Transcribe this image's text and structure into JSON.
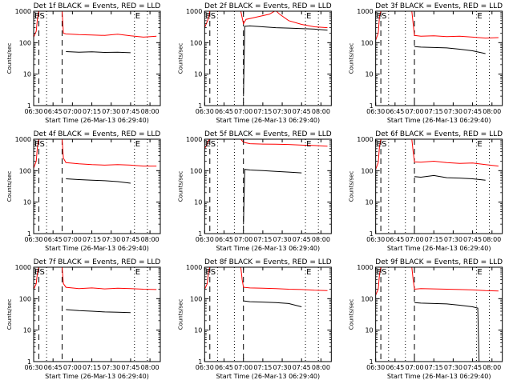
{
  "x_tick_labels": [
    "06:30",
    "06:45",
    "07:00",
    "07:15",
    "07:30",
    "07:45",
    "08:00"
  ],
  "y_tick_labels": [
    "1",
    "10",
    "100",
    "1000"
  ],
  "ylabel": "Counts/sec",
  "xlabel": "Start Time (26-Mar-13 06:29:40)",
  "colors": {
    "events": "#000000",
    "lld": "#ff0000",
    "axes": "#000000",
    "background": "#ffffff"
  },
  "chart_data": [
    {
      "type": "line",
      "title": "Det 1f BLACK = Events, RED = LLD",
      "xlabel": "Start Time (26-Mar-13 06:29:40)",
      "ylabel": "Counts/sec",
      "y_scale": "log",
      "xlim": [
        "06:30",
        "08:08"
      ],
      "ylim": [
        1,
        1000
      ],
      "x_ticks": [
        "06:30",
        "06:45",
        "07:00",
        "07:15",
        "07:30",
        "07:45",
        "08:00"
      ],
      "y_ticks": [
        1,
        10,
        100,
        1000
      ],
      "markers": [
        {
          "label": "E",
          "x": "06:30"
        },
        {
          "label": "S",
          "x": "06:34"
        },
        {
          "label": "E",
          "x": "07:48"
        }
      ],
      "dashed_lines": [
        "06:34",
        "06:52"
      ],
      "dotted_lines": [
        "06:40",
        "07:48",
        "07:58"
      ],
      "series": [
        {
          "color": "#ff0000",
          "x": [
            "06:30",
            "06:32",
            "06:33",
            "06:34",
            "06:35",
            "06:52",
            "06:53",
            "06:55",
            "07:05",
            "07:15",
            "07:25",
            "07:35",
            "07:45",
            "07:55",
            "08:05"
          ],
          "y": [
            150,
            230,
            600,
            1000,
            1000,
            1000,
            200,
            190,
            180,
            175,
            170,
            185,
            165,
            150,
            160
          ]
        },
        {
          "color": "#000000",
          "x": [
            "06:55",
            "07:05",
            "07:15",
            "07:25",
            "07:35",
            "07:45"
          ],
          "y": [
            52,
            50,
            51,
            49,
            50,
            48
          ]
        }
      ]
    },
    {
      "type": "line",
      "title": "Det 2f BLACK = Events, RED = LLD",
      "xlabel": "Start Time (26-Mar-13 06:29:40)",
      "ylabel": "Counts/sec",
      "y_scale": "log",
      "xlim": [
        "06:30",
        "08:08"
      ],
      "ylim": [
        1,
        1000
      ],
      "x_ticks": [
        "06:30",
        "06:45",
        "07:00",
        "07:15",
        "07:30",
        "07:45",
        "08:00"
      ],
      "y_ticks": [
        1,
        10,
        100,
        1000
      ],
      "markers": [
        {
          "label": "E",
          "x": "06:30"
        },
        {
          "label": "S",
          "x": "06:34"
        },
        {
          "label": "E",
          "x": "07:48"
        }
      ],
      "dashed_lines": [
        "06:34",
        "07:00"
      ],
      "dotted_lines": [
        "06:40",
        "06:53",
        "07:48",
        "07:58"
      ],
      "series": [
        {
          "color": "#ff0000",
          "x": [
            "06:30",
            "06:33",
            "06:34",
            "06:35",
            "06:58",
            "07:00",
            "07:02",
            "07:10",
            "07:20",
            "07:25",
            "07:28",
            "07:35",
            "07:45",
            "07:55",
            "08:05"
          ],
          "y": [
            300,
            600,
            1000,
            1000,
            1000,
            400,
            550,
            650,
            800,
            1050,
            800,
            500,
            380,
            320,
            300
          ]
        },
        {
          "color": "#000000",
          "x": [
            "07:00",
            "07:01",
            "07:05",
            "07:15",
            "07:25",
            "07:35",
            "07:45",
            "07:55",
            "08:05"
          ],
          "y": [
            2,
            330,
            340,
            320,
            300,
            290,
            280,
            270,
            250
          ]
        }
      ]
    },
    {
      "type": "line",
      "title": "Det 3f BLACK = Events, RED = LLD",
      "xlabel": "Start Time (26-Mar-13 06:29:40)",
      "ylabel": "Counts/sec",
      "y_scale": "log",
      "xlim": [
        "06:30",
        "08:08"
      ],
      "ylim": [
        1,
        1000
      ],
      "x_ticks": [
        "06:30",
        "06:45",
        "07:00",
        "07:15",
        "07:30",
        "07:45",
        "08:00"
      ],
      "y_ticks": [
        1,
        10,
        100,
        1000
      ],
      "markers": [
        {
          "label": "E",
          "x": "06:30"
        },
        {
          "label": "S",
          "x": "06:34"
        },
        {
          "label": "E",
          "x": "07:48"
        }
      ],
      "dashed_lines": [
        "06:34",
        "07:00"
      ],
      "dotted_lines": [
        "06:40",
        "06:53",
        "07:48",
        "07:58"
      ],
      "series": [
        {
          "color": "#ff0000",
          "x": [
            "06:30",
            "06:32",
            "06:33",
            "06:34",
            "06:35",
            "06:58",
            "06:59",
            "07:00",
            "07:05",
            "07:15",
            "07:25",
            "07:35",
            "07:45",
            "07:55",
            "08:05"
          ],
          "y": [
            120,
            200,
            700,
            1000,
            1000,
            1000,
            400,
            170,
            160,
            165,
            155,
            160,
            150,
            140,
            145
          ]
        },
        {
          "color": "#000000",
          "x": [
            "07:00",
            "07:05",
            "07:15",
            "07:25",
            "07:35",
            "07:45",
            "07:55"
          ],
          "y": [
            75,
            72,
            70,
            68,
            62,
            55,
            45
          ]
        }
      ]
    },
    {
      "type": "line",
      "title": "Det 4f BLACK = Events, RED = LLD",
      "xlabel": "Start Time (26-Mar-13 06:29:40)",
      "ylabel": "Counts/sec",
      "y_scale": "log",
      "xlim": [
        "06:30",
        "08:08"
      ],
      "ylim": [
        1,
        1000
      ],
      "x_ticks": [
        "06:30",
        "06:45",
        "07:00",
        "07:15",
        "07:30",
        "07:45",
        "08:00"
      ],
      "y_ticks": [
        1,
        10,
        100,
        1000
      ],
      "markers": [
        {
          "label": "E",
          "x": "06:30"
        },
        {
          "label": "S",
          "x": "06:34"
        },
        {
          "label": "E",
          "x": "07:48"
        }
      ],
      "dashed_lines": [
        "06:34",
        "06:52"
      ],
      "dotted_lines": [
        "06:40",
        "07:48",
        "07:58"
      ],
      "series": [
        {
          "color": "#ff0000",
          "x": [
            "06:30",
            "06:32",
            "06:33",
            "06:34",
            "06:35",
            "06:52",
            "06:53",
            "06:55",
            "07:05",
            "07:15",
            "07:25",
            "07:35",
            "07:45",
            "07:55",
            "08:05"
          ],
          "y": [
            120,
            200,
            600,
            1000,
            1000,
            1000,
            250,
            180,
            165,
            155,
            150,
            155,
            150,
            140,
            140
          ]
        },
        {
          "color": "#000000",
          "x": [
            "06:55",
            "07:05",
            "07:15",
            "07:25",
            "07:35",
            "07:45"
          ],
          "y": [
            55,
            52,
            50,
            48,
            45,
            40
          ]
        }
      ]
    },
    {
      "type": "line",
      "title": "Det 5f BLACK = Events, RED = LLD",
      "xlabel": "Start Time (26-Mar-13 06:29:40)",
      "ylabel": "Counts/sec",
      "y_scale": "log",
      "xlim": [
        "06:30",
        "08:08"
      ],
      "ylim": [
        1,
        1000
      ],
      "x_ticks": [
        "06:30",
        "06:45",
        "07:00",
        "07:15",
        "07:30",
        "07:45",
        "08:00"
      ],
      "y_ticks": [
        1,
        10,
        100,
        1000
      ],
      "markers": [
        {
          "label": "E",
          "x": "06:30"
        },
        {
          "label": "S",
          "x": "06:34"
        },
        {
          "label": "E",
          "x": "07:48"
        }
      ],
      "dashed_lines": [
        "06:34",
        "07:00"
      ],
      "dotted_lines": [
        "06:40",
        "06:53",
        "07:48",
        "07:58"
      ],
      "series": [
        {
          "color": "#ff0000",
          "x": [
            "06:30",
            "06:32",
            "06:33",
            "06:34",
            "06:35",
            "06:58",
            "07:00",
            "07:05",
            "07:15",
            "07:25",
            "07:35",
            "07:45",
            "07:55",
            "08:05"
          ],
          "y": [
            500,
            700,
            900,
            1000,
            1000,
            1000,
            800,
            720,
            700,
            690,
            680,
            650,
            630,
            600
          ]
        },
        {
          "color": "#000000",
          "x": [
            "07:00",
            "07:01",
            "07:05",
            "07:15",
            "07:25",
            "07:35",
            "07:45"
          ],
          "y": [
            2,
            110,
            105,
            100,
            95,
            90,
            85
          ]
        }
      ]
    },
    {
      "type": "line",
      "title": "Det 6f BLACK = Events, RED = LLD",
      "xlabel": "Start Time (26-Mar-13 06:29:40)",
      "ylabel": "Counts/sec",
      "y_scale": "log",
      "xlim": [
        "06:30",
        "08:08"
      ],
      "ylim": [
        1,
        1000
      ],
      "x_ticks": [
        "06:30",
        "06:45",
        "07:00",
        "07:15",
        "07:30",
        "07:45",
        "08:00"
      ],
      "y_ticks": [
        1,
        10,
        100,
        1000
      ],
      "markers": [
        {
          "label": "E",
          "x": "06:30"
        },
        {
          "label": "S",
          "x": "06:34"
        },
        {
          "label": "E",
          "x": "07:48"
        }
      ],
      "dashed_lines": [
        "06:34",
        "07:00"
      ],
      "dotted_lines": [
        "06:40",
        "06:53",
        "07:48",
        "07:58"
      ],
      "series": [
        {
          "color": "#ff0000",
          "x": [
            "06:30",
            "06:32",
            "06:33",
            "06:34",
            "06:35",
            "06:58",
            "06:59",
            "07:00",
            "07:05",
            "07:15",
            "07:25",
            "07:35",
            "07:45",
            "07:55",
            "08:05"
          ],
          "y": [
            110,
            180,
            600,
            1000,
            1000,
            1000,
            400,
            190,
            185,
            200,
            180,
            170,
            175,
            155,
            140
          ]
        },
        {
          "color": "#000000",
          "x": [
            "07:00",
            "07:05",
            "07:15",
            "07:25",
            "07:35",
            "07:45",
            "07:55"
          ],
          "y": [
            65,
            62,
            70,
            60,
            58,
            55,
            50
          ]
        }
      ]
    },
    {
      "type": "line",
      "title": "Det 7f BLACK = Events, RED = LLD",
      "xlabel": "Start Time (26-Mar-13 06:29:40)",
      "ylabel": "Counts/sec",
      "y_scale": "log",
      "xlim": [
        "06:30",
        "08:08"
      ],
      "ylim": [
        1,
        1000
      ],
      "x_ticks": [
        "06:30",
        "06:45",
        "07:00",
        "07:15",
        "07:30",
        "07:45",
        "08:00"
      ],
      "y_ticks": [
        1,
        10,
        100,
        1000
      ],
      "markers": [
        {
          "label": "E",
          "x": "06:30"
        },
        {
          "label": "S",
          "x": "06:34"
        },
        {
          "label": "E",
          "x": "07:48"
        }
      ],
      "dashed_lines": [
        "06:34",
        "06:52"
      ],
      "dotted_lines": [
        "06:40",
        "07:48",
        "07:58"
      ],
      "series": [
        {
          "color": "#ff0000",
          "x": [
            "06:30",
            "06:32",
            "06:33",
            "06:34",
            "06:35",
            "06:52",
            "06:53",
            "06:55",
            "07:05",
            "07:15",
            "07:25",
            "07:35",
            "07:45",
            "07:55",
            "08:05"
          ],
          "y": [
            200,
            300,
            700,
            1000,
            1000,
            1000,
            300,
            230,
            210,
            220,
            205,
            215,
            210,
            200,
            195
          ]
        },
        {
          "color": "#000000",
          "x": [
            "06:55",
            "07:05",
            "07:15",
            "07:25",
            "07:35",
            "07:45"
          ],
          "y": [
            45,
            42,
            40,
            38,
            37,
            36
          ]
        }
      ]
    },
    {
      "type": "line",
      "title": "Det 8f BLACK = Events, RED = LLD",
      "xlabel": "Start Time (26-Mar-13 06:29:40)",
      "ylabel": "Counts/sec",
      "y_scale": "log",
      "xlim": [
        "06:30",
        "08:08"
      ],
      "ylim": [
        1,
        1000
      ],
      "x_ticks": [
        "06:30",
        "06:45",
        "07:00",
        "07:15",
        "07:30",
        "07:45",
        "08:00"
      ],
      "y_ticks": [
        1,
        10,
        100,
        1000
      ],
      "markers": [
        {
          "label": "E",
          "x": "06:30"
        },
        {
          "label": "S",
          "x": "06:34"
        },
        {
          "label": "E",
          "x": "07:48"
        }
      ],
      "dashed_lines": [
        "06:34",
        "07:00"
      ],
      "dotted_lines": [
        "06:40",
        "06:53",
        "07:48",
        "07:58"
      ],
      "series": [
        {
          "color": "#ff0000",
          "x": [
            "06:30",
            "06:32",
            "06:33",
            "06:34",
            "06:35",
            "06:58",
            "06:59",
            "07:00",
            "07:05",
            "07:15",
            "07:25",
            "07:35",
            "07:45",
            "07:55",
            "08:05"
          ],
          "y": [
            200,
            300,
            700,
            1000,
            1000,
            1000,
            400,
            230,
            220,
            215,
            210,
            200,
            195,
            185,
            180
          ]
        },
        {
          "color": "#000000",
          "x": [
            "07:00",
            "07:05",
            "07:15",
            "07:25",
            "07:35",
            "07:45"
          ],
          "y": [
            85,
            80,
            78,
            75,
            70,
            55
          ]
        }
      ]
    },
    {
      "type": "line",
      "title": "Det 9f BLACK = Events, RED = LLD",
      "xlabel": "Start Time (26-Mar-13 06:29:40)",
      "ylabel": "Counts/sec",
      "y_scale": "log",
      "xlim": [
        "06:30",
        "08:08"
      ],
      "ylim": [
        1,
        1000
      ],
      "x_ticks": [
        "06:30",
        "06:45",
        "07:00",
        "07:15",
        "07:30",
        "07:45",
        "08:00"
      ],
      "y_ticks": [
        1,
        10,
        100,
        1000
      ],
      "markers": [
        {
          "label": "E",
          "x": "06:30"
        },
        {
          "label": "S",
          "x": "06:34"
        },
        {
          "label": "E",
          "x": "07:48"
        }
      ],
      "dashed_lines": [
        "06:34",
        "07:00"
      ],
      "dotted_lines": [
        "06:40",
        "06:53",
        "07:48",
        "07:58"
      ],
      "series": [
        {
          "color": "#ff0000",
          "x": [
            "06:30",
            "06:32",
            "06:33",
            "06:34",
            "06:35",
            "06:58",
            "06:59",
            "07:00",
            "07:05",
            "07:15",
            "07:25",
            "07:35",
            "07:45",
            "07:55",
            "08:05"
          ],
          "y": [
            130,
            200,
            600,
            1000,
            1000,
            1000,
            400,
            200,
            210,
            205,
            200,
            195,
            190,
            180,
            175
          ]
        },
        {
          "color": "#000000",
          "x": [
            "07:00",
            "07:05",
            "07:15",
            "07:25",
            "07:35",
            "07:45",
            "07:49",
            "07:50"
          ],
          "y": [
            75,
            72,
            70,
            68,
            62,
            55,
            50,
            1
          ]
        }
      ]
    }
  ]
}
